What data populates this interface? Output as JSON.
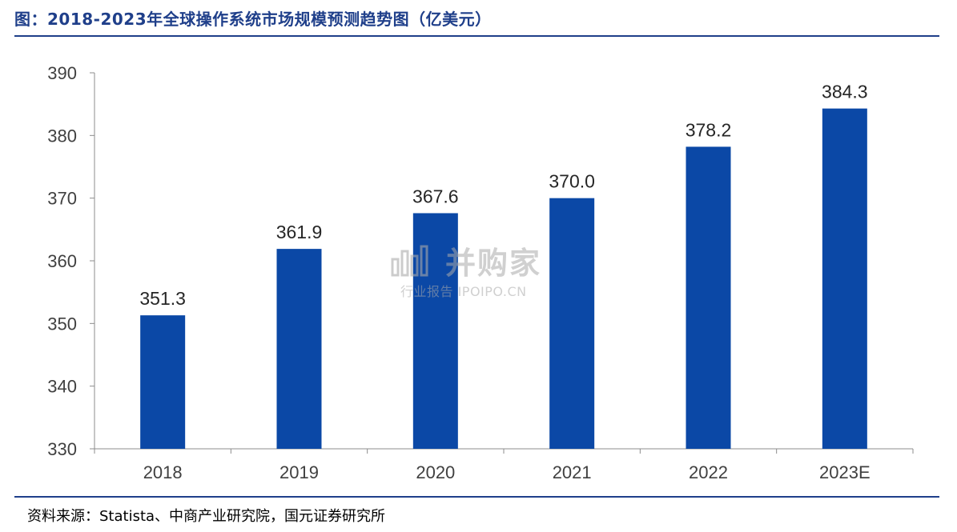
{
  "header": {
    "title": "图：2018-2023年全球操作系统市场规模预测趋势图（亿美元）"
  },
  "footer": {
    "source": "资料来源：Statista、中商产业研究院，国元证券研究所"
  },
  "watermark": {
    "main": "并购家",
    "sub": "行业报告 IPOIPO.CN"
  },
  "chart_data": {
    "type": "bar",
    "categories": [
      "2018",
      "2019",
      "2020",
      "2021",
      "2022",
      "2023E"
    ],
    "values": [
      351.3,
      361.9,
      367.6,
      370.0,
      378.2,
      384.3
    ],
    "value_labels": [
      "351.3",
      "361.9",
      "367.6",
      "370.0",
      "378.2",
      "384.3"
    ],
    "ylim": [
      330,
      390
    ],
    "yticks": [
      330,
      340,
      350,
      360,
      370,
      380,
      390
    ],
    "bar_color": "#0b48a6",
    "grid": false,
    "legend": "none"
  }
}
